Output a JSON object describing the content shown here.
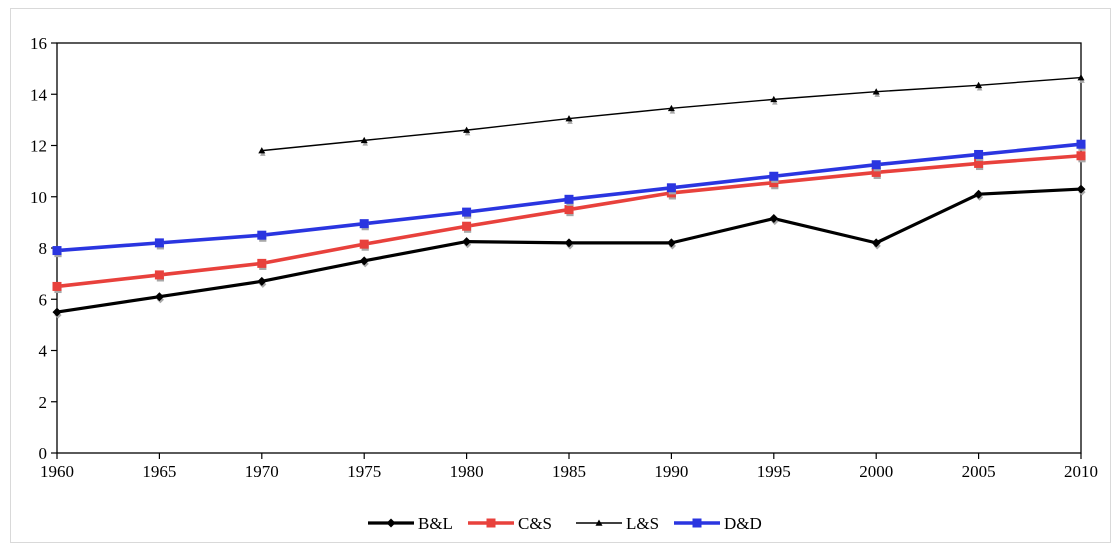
{
  "chart_data": {
    "type": "line",
    "title": "",
    "xlabel": "",
    "ylabel": "",
    "x": [
      1960,
      1965,
      1970,
      1975,
      1980,
      1985,
      1990,
      1995,
      2000,
      2005,
      2010
    ],
    "xlim": [
      1960,
      2010
    ],
    "ylim": [
      0,
      16
    ],
    "x_ticks": [
      1960,
      1965,
      1970,
      1975,
      1980,
      1985,
      1990,
      1995,
      2000,
      2005,
      2010
    ],
    "y_ticks": [
      0,
      2,
      4,
      6,
      8,
      10,
      12,
      14,
      16
    ],
    "grid": false,
    "legend_position": "bottom",
    "series": [
      {
        "name": "B&L",
        "color": "#000000",
        "marker": "diamond",
        "values": [
          5.5,
          6.1,
          6.7,
          7.5,
          8.25,
          8.2,
          8.2,
          9.15,
          8.2,
          10.1,
          10.3
        ]
      },
      {
        "name": "C&S",
        "color": "#e8413c",
        "marker": "square",
        "values": [
          6.5,
          6.95,
          7.4,
          8.15,
          8.85,
          9.5,
          10.15,
          10.55,
          10.95,
          11.3,
          11.6
        ]
      },
      {
        "name": "L&S",
        "color": "#000000",
        "marker": "triangle",
        "values": [
          null,
          null,
          11.8,
          12.2,
          12.6,
          13.05,
          13.45,
          13.8,
          14.1,
          14.35,
          14.65
        ]
      },
      {
        "name": "D&D",
        "color": "#2a35e0",
        "marker": "square",
        "values": [
          7.9,
          8.2,
          8.5,
          8.95,
          9.4,
          9.9,
          10.35,
          10.8,
          11.25,
          11.65,
          12.05
        ]
      }
    ]
  }
}
